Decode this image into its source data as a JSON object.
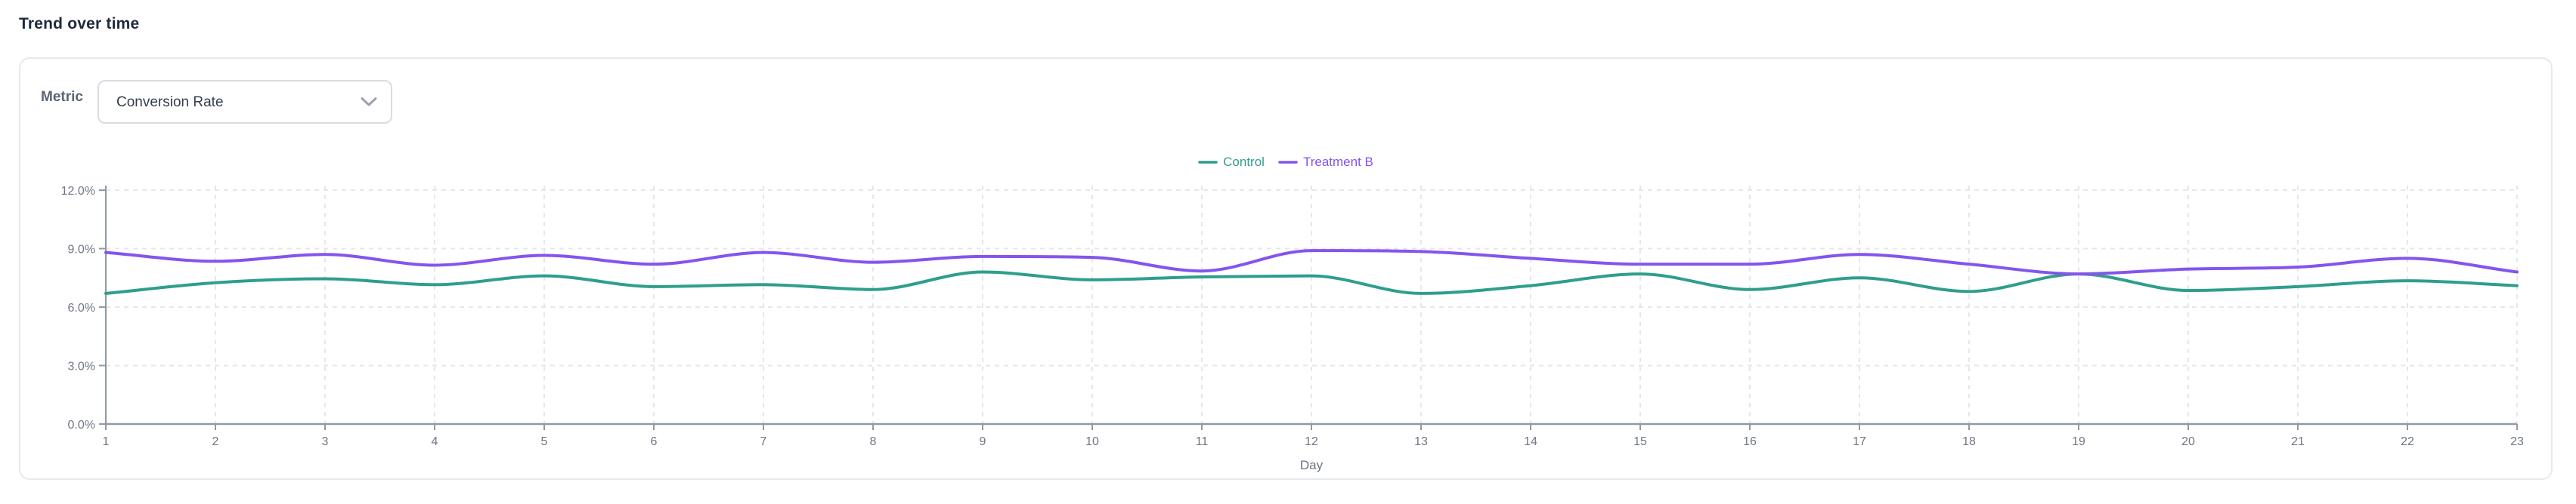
{
  "page_title": "Trend over time",
  "metric": {
    "label": "Metric",
    "value": "Conversion Rate"
  },
  "colors": {
    "teal": "#2e9e8d",
    "purple": "#8455ec",
    "axis_line": "#9099a6",
    "grid_line": "#e5e7eb",
    "tick_text": "#6f7683"
  },
  "chart_data": {
    "type": "line",
    "title": "Trend over time",
    "xlabel": "Day",
    "ylabel": "",
    "x": [
      1,
      2,
      3,
      4,
      5,
      6,
      7,
      8,
      9,
      10,
      11,
      12,
      13,
      14,
      15,
      16,
      17,
      18,
      19,
      20,
      21,
      22,
      23
    ],
    "ylim": [
      0,
      12
    ],
    "y_ticks": {
      "values": [
        0,
        3,
        6,
        9,
        12
      ],
      "labels": [
        "0.0%",
        "3.0%",
        "6.0%",
        "9.0%",
        "12.0%"
      ]
    },
    "grid": true,
    "legend_position": "top",
    "series": [
      {
        "name": "Control",
        "color": "#2e9e8d",
        "values": [
          6.7,
          7.25,
          7.45,
          7.15,
          7.6,
          7.05,
          7.15,
          6.9,
          7.8,
          7.4,
          7.55,
          7.6,
          6.7,
          7.1,
          7.7,
          6.9,
          7.5,
          6.8,
          7.7,
          6.85,
          7.05,
          7.35,
          7.1
        ]
      },
      {
        "name": "Treatment B",
        "color": "#8455ec",
        "values": [
          8.8,
          8.35,
          8.7,
          8.15,
          8.65,
          8.2,
          8.8,
          8.3,
          8.6,
          8.55,
          7.85,
          8.9,
          8.85,
          8.5,
          8.2,
          8.2,
          8.7,
          8.2,
          7.7,
          7.95,
          8.05,
          8.5,
          7.8
        ]
      }
    ]
  }
}
